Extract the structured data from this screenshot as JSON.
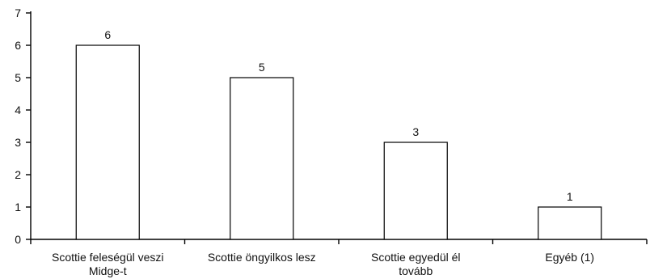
{
  "chart_data": {
    "type": "bar",
    "categories": [
      [
        "Scottie feleségül veszi",
        "Midge-t"
      ],
      [
        "Scottie öngyilkos lesz"
      ],
      [
        "Scottie egyedül él",
        "tovább"
      ],
      [
        "Egyéb (1)"
      ]
    ],
    "values": [
      6,
      5,
      3,
      1
    ],
    "data_labels": [
      "6",
      "5",
      "3",
      "1"
    ],
    "y_ticks": [
      "0",
      "1",
      "2",
      "3",
      "4",
      "5",
      "6",
      "7"
    ],
    "ylim": [
      0,
      7
    ],
    "grid": false,
    "legend": "none",
    "title": "",
    "xlabel": "",
    "ylabel": "",
    "colors": {
      "bar_fill": "#ffffff",
      "bar_stroke": "#000000",
      "axis": "#000000",
      "text": "#111111"
    }
  }
}
